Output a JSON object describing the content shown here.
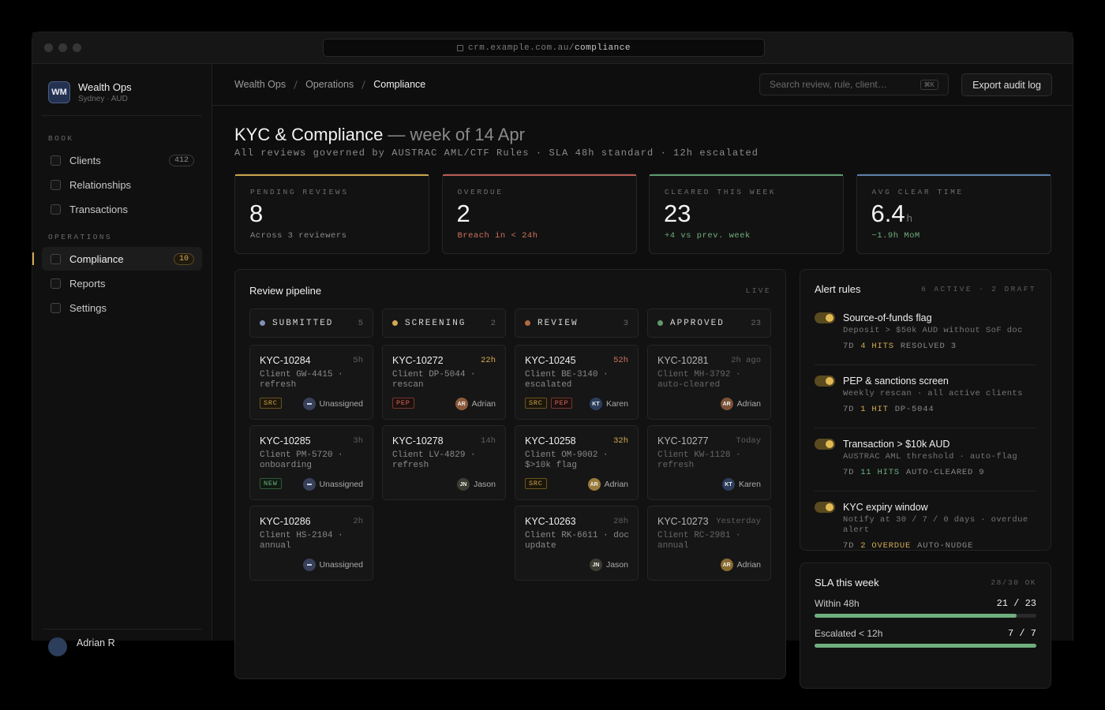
{
  "browser": {
    "url_host": "crm.example.com.au/",
    "url_path": "compliance"
  },
  "sidebar": {
    "org": {
      "initials": "WM",
      "name": "Wealth Ops",
      "sub": "Sydney · AUD"
    },
    "sections": [
      {
        "label": "BOOK",
        "items": [
          {
            "label": "Clients",
            "count": "412"
          },
          {
            "label": "Relationships"
          },
          {
            "label": "Transactions"
          }
        ]
      },
      {
        "label": "OPERATIONS",
        "items": [
          {
            "label": "Compliance",
            "count": "10",
            "active": true
          },
          {
            "label": "Reports"
          },
          {
            "label": "Settings"
          }
        ]
      }
    ],
    "user": {
      "name": "Adrian R"
    }
  },
  "header": {
    "breadcrumb": [
      "Wealth Ops",
      "Operations",
      "Compliance"
    ],
    "search_placeholder": "Search review, rule, client…",
    "search_kbd": "⌘K",
    "export": "Export audit log"
  },
  "page": {
    "title": "KYC & Compliance",
    "title_suffix": "— week of 14 Apr",
    "subtitle": "All reviews governed by AUSTRAC AML/CTF Rules · SLA 48h standard · 12h escalated"
  },
  "kpis": [
    {
      "label": "PENDING REVIEWS",
      "value": "8",
      "note": "Across 3 reviewers",
      "tone": "neutral",
      "accent": "#c9a34a"
    },
    {
      "label": "OVERDUE",
      "value": "2",
      "note": "Breach in < 24h",
      "tone": "red",
      "accent": "#b85a55"
    },
    {
      "label": "CLEARED THIS WEEK",
      "value": "23",
      "note": "+4 vs prev. week",
      "tone": "green",
      "accent": "#5f9a6c"
    },
    {
      "label": "AVG CLEAR TIME",
      "value": "6.4",
      "unit": "h",
      "note": "−1.9h MoM",
      "tone": "green",
      "accent": "#5a7ea8"
    }
  ],
  "pipeline": {
    "title": "Review pipeline",
    "badge": "LIVE",
    "columns": [
      {
        "name": "SUBMITTED",
        "count": "5",
        "color": "#8190b4",
        "cards": [
          {
            "id": "KYC-10284",
            "age": "5h",
            "desc": "Client GW-4415 · refresh",
            "tags": [
              {
                "text": "SRC",
                "tone": "gold"
              }
            ],
            "avatar": null,
            "assignee": "Unassigned"
          },
          {
            "id": "KYC-10285",
            "age": "3h",
            "desc": "Client PM-5720 · onboarding",
            "tags": [
              {
                "text": "NEW",
                "tone": "green"
              }
            ],
            "avatar": null,
            "assignee": "Unassigned"
          },
          {
            "id": "KYC-10286",
            "age": "2h",
            "desc": "Client HS-2104 · annual",
            "tags": [],
            "avatar": null,
            "assignee": "Unassigned"
          }
        ]
      },
      {
        "name": "SCREENING",
        "count": "2",
        "color": "#d4aa52",
        "cards": [
          {
            "id": "KYC-10272",
            "age": "22h",
            "age_tone": "gold",
            "desc": "Client DP-5044 · rescan",
            "tags": [
              {
                "text": "PEP",
                "tone": "red"
              }
            ],
            "avatar": {
              "initials": "AR",
              "color": "#8a5a3a"
            },
            "assignee": "Adrian"
          },
          {
            "id": "KYC-10278",
            "age": "14h",
            "desc": "Client LV-4829 · refresh",
            "tags": [],
            "avatar": {
              "initials": "JN",
              "color": "#3d3d33"
            },
            "assignee": "Jason"
          }
        ]
      },
      {
        "name": "REVIEW",
        "count": "3",
        "color": "#b06a42",
        "cards": [
          {
            "id": "KYC-10245",
            "age": "52h",
            "age_tone": "red",
            "desc": "Client BE-3140 · escalated",
            "tags": [
              {
                "text": "SRC",
                "tone": "gold"
              },
              {
                "text": "PEP",
                "tone": "red"
              }
            ],
            "avatar": {
              "initials": "KT",
              "color": "#2c3e5c"
            },
            "assignee": "Karen"
          },
          {
            "id": "KYC-10258",
            "age": "32h",
            "age_tone": "gold",
            "desc": "Client OM-9002 · $>10k flag",
            "tags": [
              {
                "text": "SRC",
                "tone": "gold"
              }
            ],
            "avatar": {
              "initials": "AR",
              "color": "#9a7a3a"
            },
            "assignee": "Adrian"
          },
          {
            "id": "KYC-10263",
            "age": "28h",
            "desc": "Client RK-6611 · doc update",
            "tags": [],
            "avatar": {
              "initials": "JN",
              "color": "#3d3d33"
            },
            "assignee": "Jason"
          }
        ]
      },
      {
        "name": "APPROVED",
        "count": "23",
        "color": "#5f9a6c",
        "muted": true,
        "cards": [
          {
            "id": "KYC-10281",
            "age": "2h ago",
            "desc": "Client MH-3792 · auto-cleared",
            "tags": [],
            "avatar": {
              "initials": "AR",
              "color": "#7a5238"
            },
            "assignee": "Adrian"
          },
          {
            "id": "KYC-10277",
            "age": "Today",
            "desc": "Client KW-1128 · refresh",
            "tags": [],
            "avatar": {
              "initials": "KT",
              "color": "#2c3e5c"
            },
            "assignee": "Karen"
          },
          {
            "id": "KYC-10273",
            "age": "Yesterday",
            "desc": "Client RC-2981 · annual",
            "tags": [],
            "avatar": {
              "initials": "AR",
              "color": "#8a6a30"
            },
            "assignee": "Adrian"
          }
        ]
      }
    ]
  },
  "alerts": {
    "title": "Alert rules",
    "meta": "6 ACTIVE · 2 DRAFT",
    "rules": [
      {
        "title": "Source-of-funds flag",
        "desc": "Deposit > $50k AUD without SoF doc",
        "meta": [
          {
            "text": "7D"
          },
          {
            "text": "4 HITS",
            "tone": "gold"
          },
          {
            "text": "RESOLVED 3"
          }
        ]
      },
      {
        "title": "PEP & sanctions screen",
        "desc": "Weekly rescan · all active clients",
        "meta": [
          {
            "text": "7D"
          },
          {
            "text": "1 HIT",
            "tone": "gold"
          },
          {
            "text": "DP-5044"
          }
        ]
      },
      {
        "title": "Transaction > $10k AUD",
        "desc": "AUSTRAC AML threshold · auto-flag",
        "meta": [
          {
            "text": "7D"
          },
          {
            "text": "11 HITS",
            "tone": "green"
          },
          {
            "text": "AUTO-CLEARED 9"
          }
        ]
      },
      {
        "title": "KYC expiry window",
        "desc": "Notify at 30 / 7 / 0 days · overdue alert",
        "meta": [
          {
            "text": "7D"
          },
          {
            "text": "2 OVERDUE",
            "tone": "gold"
          },
          {
            "text": "AUTO-NUDGE"
          }
        ]
      }
    ]
  },
  "sla": {
    "title": "SLA this week",
    "meta": "28/30 OK",
    "rows": [
      {
        "label": "Within 48h",
        "value": "21 / 23"
      },
      {
        "label": "Escalated < 12h",
        "value": "7 / 7"
      }
    ]
  }
}
